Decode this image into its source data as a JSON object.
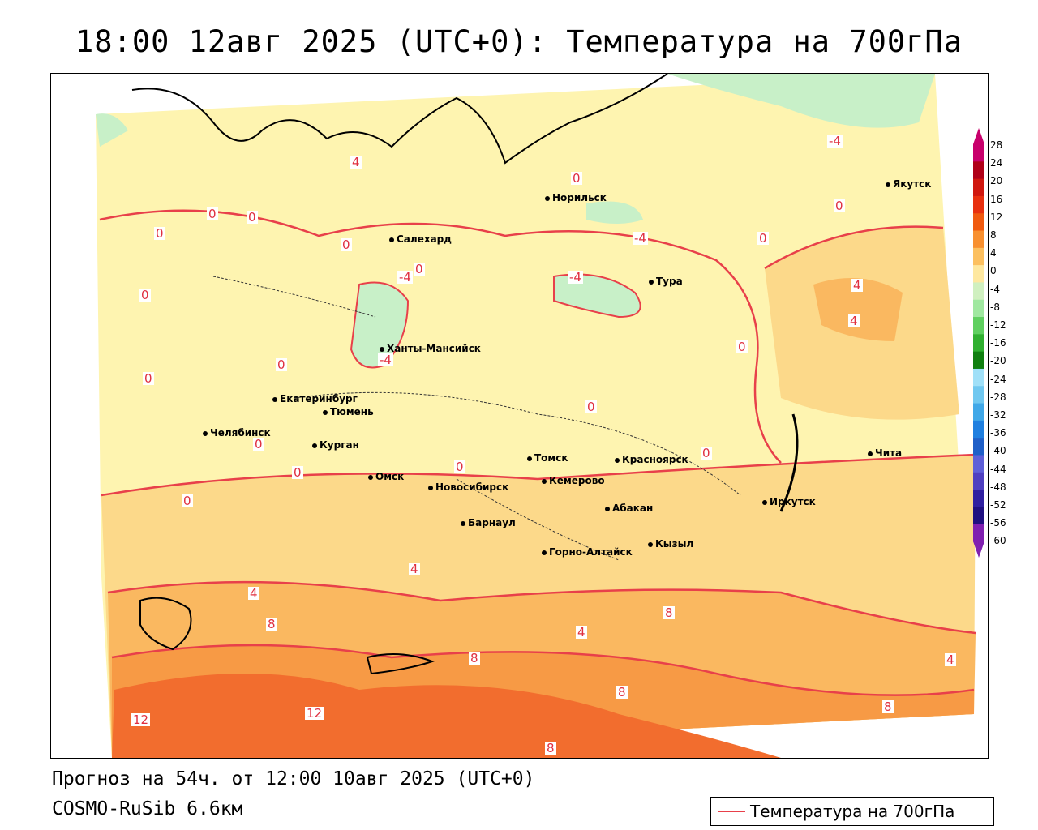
{
  "title": "18:00 12авг 2025 (UTC+0): Температура на 700гПа",
  "footer": {
    "forecast": "Прогноз на 54ч. от 12:00 10авг 2025 (UTC+0)",
    "model": "COSMO-RuSib 6.6км"
  },
  "legend": {
    "label": "Температура на 700гПа",
    "color": "#e8404a"
  },
  "colorbar": {
    "labels": [
      "28",
      "24",
      "20",
      "16",
      "12",
      "8",
      "4",
      "0",
      "-4",
      "-8",
      "-12",
      "-16",
      "-20",
      "-24",
      "-28",
      "-32",
      "-36",
      "-40",
      "-44",
      "-48",
      "-52",
      "-56",
      "-60"
    ],
    "colors": [
      "#c8006c",
      "#b00018",
      "#d01810",
      "#e83010",
      "#f05a10",
      "#f89030",
      "#fcc060",
      "#fee8a0",
      "#d0f0c0",
      "#a0e8a0",
      "#60d060",
      "#30b030",
      "#108010",
      "#a0e0f8",
      "#70c8f0",
      "#40a8e8",
      "#2080e0",
      "#2060c8",
      "#6060d8",
      "#5040c0",
      "#3020a0",
      "#201080",
      "#8020b0"
    ]
  },
  "cities": [
    {
      "name": "Норильск"
    },
    {
      "name": "Якутск"
    },
    {
      "name": "Салехард"
    },
    {
      "name": "Тура"
    },
    {
      "name": "Ханты-Мансийск"
    },
    {
      "name": "Екатеринбург"
    },
    {
      "name": "Тюмень"
    },
    {
      "name": "Челябинск"
    },
    {
      "name": "Курган"
    },
    {
      "name": "Омск"
    },
    {
      "name": "Новосибирск"
    },
    {
      "name": "Томск"
    },
    {
      "name": "Кемерово"
    },
    {
      "name": "Красноярск"
    },
    {
      "name": "Барнаул"
    },
    {
      "name": "Абакан"
    },
    {
      "name": "Горно-Алтайск"
    },
    {
      "name": "Кызыл"
    },
    {
      "name": "Иркутск"
    },
    {
      "name": "Чита"
    }
  ],
  "contour_labels": [
    {
      "text": "-4"
    },
    {
      "text": "4"
    },
    {
      "text": "0"
    },
    {
      "text": "0"
    },
    {
      "text": "0"
    },
    {
      "text": "0"
    },
    {
      "text": "0"
    },
    {
      "text": "-4"
    },
    {
      "text": "-4"
    },
    {
      "text": "0"
    },
    {
      "text": "-4"
    },
    {
      "text": "0"
    },
    {
      "text": "0"
    },
    {
      "text": "4"
    },
    {
      "text": "4"
    },
    {
      "text": "-4"
    },
    {
      "text": "0"
    },
    {
      "text": "0"
    },
    {
      "text": "0"
    },
    {
      "text": "0"
    },
    {
      "text": "0"
    },
    {
      "text": "0"
    },
    {
      "text": "0"
    },
    {
      "text": "0"
    },
    {
      "text": "0"
    },
    {
      "text": "0"
    },
    {
      "text": "4"
    },
    {
      "text": "4"
    },
    {
      "text": "8"
    },
    {
      "text": "4"
    },
    {
      "text": "8"
    },
    {
      "text": "8"
    },
    {
      "text": "8"
    },
    {
      "text": "8"
    },
    {
      "text": "4"
    },
    {
      "text": "12"
    },
    {
      "text": "12"
    },
    {
      "text": "8"
    }
  ]
}
